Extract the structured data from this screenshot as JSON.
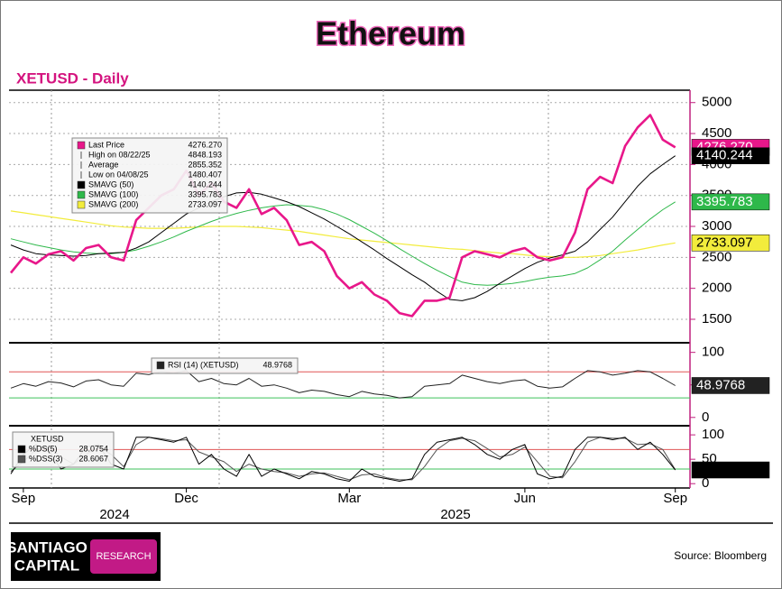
{
  "title": "Ethereum",
  "footer": {
    "logo_line1": "SANTIAGO",
    "logo_line2": "CAPITAL",
    "logo_badge": "RESEARCH",
    "source": "Source: Bloomberg"
  },
  "chart_data": [
    {
      "type": "line",
      "title": "XETUSD - Daily",
      "categories": [
        null,
        "Sep",
        null,
        null,
        null,
        null,
        null,
        null,
        null,
        null,
        null,
        null,
        null,
        null,
        "Dec",
        null,
        null,
        null,
        null,
        null,
        null,
        null,
        null,
        null,
        null,
        null,
        null,
        "Mar",
        null,
        null,
        null,
        null,
        null,
        null,
        null,
        null,
        null,
        null,
        null,
        null,
        null,
        "Jun",
        null,
        null,
        null,
        null,
        null,
        null,
        null,
        null,
        null,
        null,
        null,
        "Sep"
      ],
      "year_labels": [
        "2024",
        "2025"
      ],
      "ylim": [
        1150,
        5200
      ],
      "yticks": [
        1500,
        2000,
        2500,
        3000,
        3500,
        4000,
        4500,
        5000
      ],
      "grid": true,
      "series": [
        {
          "name": "Last Price",
          "color": "#e8178a",
          "line_width": 2.6,
          "legend_value": "4276.270",
          "tag": true,
          "tag_text_color": "#ffffff",
          "values": [
            2250,
            2500,
            2400,
            2550,
            2600,
            2450,
            2650,
            2700,
            2500,
            2450,
            3100,
            3300,
            3500,
            3600,
            3900,
            3500,
            3700,
            3400,
            3300,
            3600,
            3200,
            3300,
            3100,
            2700,
            2750,
            2600,
            2200,
            2000,
            2100,
            1900,
            1800,
            1600,
            1550,
            1800,
            1800,
            1850,
            2500,
            2600,
            2550,
            2500,
            2600,
            2650,
            2500,
            2450,
            2500,
            2900,
            3600,
            3800,
            3700,
            4300,
            4600,
            4800,
            4400,
            4276.27
          ]
        },
        {
          "name": "SMAVG (50)",
          "color": "#000000",
          "line_width": 1,
          "legend_value": "4140.244",
          "tag": true,
          "tag_text_color": "#ffffff",
          "values": [
            2700,
            2620,
            2560,
            2540,
            2530,
            2520,
            2530,
            2560,
            2570,
            2580,
            2650,
            2750,
            2900,
            3050,
            3200,
            3300,
            3400,
            3480,
            3540,
            3550,
            3520,
            3460,
            3400,
            3320,
            3220,
            3120,
            3000,
            2880,
            2750,
            2620,
            2480,
            2350,
            2220,
            2100,
            1950,
            1820,
            1800,
            1850,
            1950,
            2080,
            2200,
            2320,
            2420,
            2490,
            2540,
            2600,
            2750,
            2950,
            3150,
            3400,
            3650,
            3850,
            4000,
            4140.244
          ]
        },
        {
          "name": "SMAVG (100)",
          "color": "#2eb84a",
          "line_width": 1,
          "legend_value": "3395.783",
          "tag": true,
          "tag_text_color": "#ffffff",
          "values": [
            2800,
            2750,
            2700,
            2660,
            2620,
            2590,
            2570,
            2560,
            2560,
            2580,
            2620,
            2680,
            2750,
            2830,
            2920,
            3000,
            3080,
            3150,
            3210,
            3260,
            3300,
            3330,
            3350,
            3340,
            3320,
            3270,
            3200,
            3110,
            3000,
            2890,
            2770,
            2640,
            2520,
            2400,
            2290,
            2190,
            2100,
            2060,
            2050,
            2060,
            2080,
            2110,
            2150,
            2180,
            2200,
            2240,
            2330,
            2460,
            2600,
            2780,
            2950,
            3120,
            3270,
            3395.783
          ]
        },
        {
          "name": "SMAVG (200)",
          "color": "#f2ec3c",
          "line_width": 1.2,
          "legend_value": "2733.097",
          "tag": true,
          "tag_text_color": "#000000",
          "values": [
            3250,
            3220,
            3190,
            3160,
            3130,
            3100,
            3070,
            3040,
            3010,
            2990,
            2980,
            2970,
            2970,
            2970,
            2980,
            2990,
            3000,
            3000,
            3000,
            2990,
            2980,
            2960,
            2940,
            2920,
            2890,
            2860,
            2830,
            2800,
            2780,
            2760,
            2740,
            2720,
            2700,
            2680,
            2660,
            2640,
            2630,
            2610,
            2590,
            2570,
            2560,
            2540,
            2520,
            2510,
            2500,
            2500,
            2510,
            2530,
            2560,
            2590,
            2620,
            2660,
            2700,
            2733.097
          ]
        }
      ],
      "stats": [
        {
          "label": "High on 08/22/25",
          "value": "4848.193"
        },
        {
          "label": "Average",
          "value": "2855.352"
        },
        {
          "label": "Low on 04/08/25",
          "value": "1480.407"
        }
      ]
    },
    {
      "type": "line",
      "ylim": [
        -10,
        112
      ],
      "yticks": [
        0,
        50,
        100
      ],
      "grid": false,
      "ref_lines": [
        {
          "value": 70,
          "color": "#e05555"
        },
        {
          "value": 30,
          "color": "#3cc25a"
        }
      ],
      "series": [
        {
          "name": "RSI (14) (XETUSD)",
          "color": "#222222",
          "line_width": 1,
          "legend_value": "48.9768",
          "tag": true,
          "tag_text_color": "#ffffff",
          "values": [
            45,
            52,
            48,
            55,
            53,
            47,
            56,
            58,
            50,
            48,
            68,
            66,
            70,
            68,
            72,
            55,
            60,
            52,
            50,
            60,
            48,
            50,
            45,
            38,
            42,
            40,
            35,
            32,
            40,
            36,
            34,
            30,
            32,
            48,
            50,
            52,
            65,
            60,
            55,
            52,
            56,
            58,
            48,
            45,
            47,
            60,
            72,
            70,
            65,
            68,
            72,
            70,
            60,
            48.9768
          ]
        }
      ]
    },
    {
      "type": "line",
      "legend_title": "XETUSD",
      "ylim": [
        -7,
        115
      ],
      "yticks": [
        0,
        50,
        100
      ],
      "grid": false,
      "ref_lines": [
        {
          "value": 70,
          "color": "#e05555"
        },
        {
          "value": 30,
          "color": "#3cc25a"
        }
      ],
      "series": [
        {
          "name": "%DS(5)",
          "color": "#000000",
          "line_width": 1,
          "legend_value": "28.0754",
          "tag": true,
          "tag_text_color": "#000000",
          "values": [
            20,
            60,
            80,
            70,
            30,
            40,
            75,
            80,
            40,
            30,
            95,
            95,
            90,
            85,
            95,
            40,
            60,
            30,
            15,
            60,
            15,
            30,
            20,
            10,
            25,
            20,
            10,
            5,
            30,
            15,
            10,
            5,
            10,
            60,
            85,
            90,
            95,
            80,
            60,
            50,
            70,
            80,
            20,
            10,
            15,
            70,
            95,
            95,
            90,
            95,
            70,
            85,
            60,
            28.0754
          ]
        },
        {
          "name": "%DSS(3)",
          "color": "#555555",
          "line_width": 1,
          "legend_value": "28.6067",
          "tag": false,
          "values": [
            25,
            45,
            70,
            75,
            55,
            40,
            60,
            75,
            60,
            35,
            80,
            95,
            92,
            88,
            90,
            65,
            55,
            45,
            25,
            40,
            30,
            25,
            22,
            15,
            20,
            22,
            15,
            8,
            18,
            20,
            12,
            8,
            8,
            35,
            70,
            88,
            93,
            88,
            72,
            55,
            60,
            75,
            45,
            15,
            12,
            45,
            85,
            95,
            93,
            93,
            80,
            82,
            70,
            28.6067
          ]
        }
      ]
    }
  ]
}
